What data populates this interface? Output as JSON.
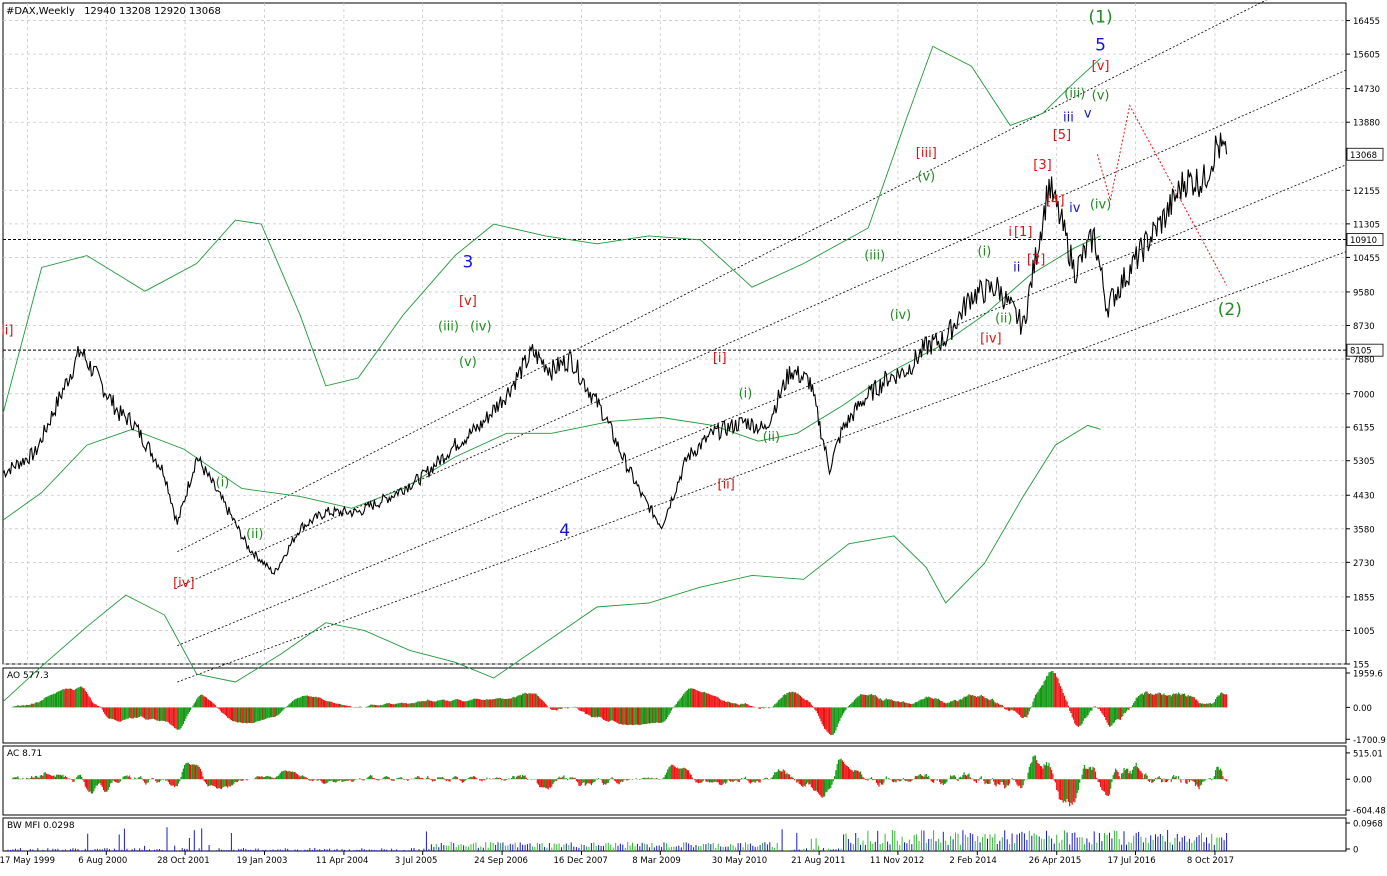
{
  "header": {
    "symbol": "#DAX,Weekly",
    "ohlc": "12940 13208 12920 13068"
  },
  "colors": {
    "price": "#000000",
    "grid": "#c8c8c8",
    "channel": "#000000",
    "envelope": "#1f9a3a",
    "wave_green": "#1e8c1e",
    "wave_red": "#dd1111",
    "wave_blue": "#1515d0",
    "ao_up": "#119911",
    "ao_down": "#ee1111",
    "mfi": "#1a1acc",
    "mfi_green": "#33bb33",
    "projection": "#ee1111"
  },
  "chart_data": [
    {
      "type": "line",
      "name": "price",
      "title": "#DAX,Weekly",
      "ylim": [
        155,
        16900
      ],
      "y_ticks": [
        "16455",
        "15605",
        "14730",
        "13880",
        "12155",
        "11305",
        "10455",
        "9580",
        "8730",
        "7880",
        "7000",
        "6155",
        "5305",
        "4430",
        "3580",
        "2730",
        "1855",
        "1005",
        "155"
      ],
      "price_tags": [
        "13068",
        "10910",
        "8105"
      ],
      "x_ticks": [
        "17 May 1999",
        "6 Aug 2000",
        "28 Oct 2001",
        "19 Jan 2003",
        "11 Apr 2004",
        "3 Jul 2005",
        "24 Sep 2006",
        "16 Dec 2007",
        "8 Mar 2009",
        "30 May 2010",
        "21 Aug 2011",
        "11 Nov 2012",
        "2 Feb 2014",
        "26 Apr 2015",
        "17 Jul 2016",
        "8 Oct 2017"
      ],
      "x": [
        1999.0,
        1999.5,
        2000.2,
        2000.5,
        2000.8,
        2001.0,
        2001.5,
        2001.7,
        2002.0,
        2002.5,
        2002.8,
        2003.2,
        2003.6,
        2004.0,
        2004.5,
        2005.0,
        2005.5,
        2006.0,
        2006.4,
        2006.8,
        2007.2,
        2007.5,
        2007.8,
        2008.0,
        2008.3,
        2008.6,
        2008.9,
        2009.2,
        2009.6,
        2010.0,
        2010.5,
        2010.8,
        2011.2,
        2011.5,
        2011.8,
        2012.0,
        2012.3,
        2012.7,
        2013.0,
        2013.3,
        2013.6,
        2014.0,
        2014.4,
        2014.8,
        2015.2,
        2015.4,
        2015.6,
        2015.9,
        2016.1,
        2016.4,
        2016.7,
        2017.0,
        2017.3,
        2017.6,
        2017.8,
        2017.95
      ],
      "y": [
        5000,
        5500,
        8100,
        7300,
        6500,
        6300,
        5000,
        3700,
        5400,
        4000,
        3100,
        2450,
        3600,
        4000,
        4000,
        4400,
        4900,
        5700,
        6200,
        7000,
        8050,
        7600,
        7900,
        7300,
        6500,
        5400,
        4400,
        3650,
        5400,
        6000,
        6300,
        6100,
        7600,
        7300,
        5100,
        6100,
        6800,
        7400,
        7600,
        8200,
        8400,
        9500,
        9700,
        8700,
        12300,
        11300,
        10100,
        11000,
        9200,
        10000,
        10800,
        11500,
        12400,
        12400,
        13300,
        13068
      ],
      "overlays": {
        "channel_lines": 4,
        "envelopes": 3
      },
      "wave_labels": [
        {
          "text": "[iii]",
          "color": "red",
          "x": 1999.0,
          "y": 8500
        },
        {
          "text": "(i)",
          "color": "green",
          "x": 2002.4,
          "y": 4650
        },
        {
          "text": "(ii)",
          "color": "green",
          "x": 2002.9,
          "y": 3350
        },
        {
          "text": "[iv]",
          "color": "red",
          "x": 2001.8,
          "y": 2100
        },
        {
          "text": "3",
          "color": "blue",
          "x": 2006.2,
          "y": 10200
        },
        {
          "text": "[v]",
          "color": "red",
          "x": 2006.2,
          "y": 9250
        },
        {
          "text": "(iii)",
          "color": "green",
          "x": 2005.9,
          "y": 8600
        },
        {
          "text": "(iv)",
          "color": "green",
          "x": 2006.4,
          "y": 8600
        },
        {
          "text": "(v)",
          "color": "green",
          "x": 2006.2,
          "y": 7700
        },
        {
          "text": "4",
          "color": "blue",
          "x": 2007.7,
          "y": 3400
        },
        {
          "text": "[i]",
          "color": "red",
          "x": 2010.1,
          "y": 7800
        },
        {
          "text": "(i)",
          "color": "green",
          "x": 2010.5,
          "y": 6900
        },
        {
          "text": "(ii)",
          "color": "green",
          "x": 2010.9,
          "y": 5800
        },
        {
          "text": "[ii]",
          "color": "red",
          "x": 2010.2,
          "y": 4600
        },
        {
          "text": "(iii)",
          "color": "green",
          "x": 2012.5,
          "y": 10400
        },
        {
          "text": "(iv)",
          "color": "green",
          "x": 2012.9,
          "y": 8900
        },
        {
          "text": "[iii]",
          "color": "red",
          "x": 2013.3,
          "y": 13000
        },
        {
          "text": "(v)",
          "color": "green",
          "x": 2013.3,
          "y": 12400
        },
        {
          "text": "(i)",
          "color": "green",
          "x": 2014.2,
          "y": 10500
        },
        {
          "text": "(ii)",
          "color": "green",
          "x": 2014.5,
          "y": 8800
        },
        {
          "text": "[iv]",
          "color": "red",
          "x": 2014.3,
          "y": 8300
        },
        {
          "text": "i",
          "color": "red",
          "x": 2014.6,
          "y": 11000
        },
        {
          "text": "[1]",
          "color": "red",
          "x": 2014.8,
          "y": 11000
        },
        {
          "text": "ii",
          "color": "blue",
          "x": 2014.7,
          "y": 10100
        },
        {
          "text": "[2]",
          "color": "red",
          "x": 2015.0,
          "y": 10300
        },
        {
          "text": "[3]",
          "color": "red",
          "x": 2015.1,
          "y": 12700
        },
        {
          "text": "[4]",
          "color": "red",
          "x": 2015.3,
          "y": 11800
        },
        {
          "text": "[5]",
          "color": "red",
          "x": 2015.4,
          "y": 13450
        },
        {
          "text": "iii",
          "color": "blue",
          "x": 2015.5,
          "y": 13900
        },
        {
          "text": "v",
          "color": "blue",
          "x": 2015.8,
          "y": 14000
        },
        {
          "text": "iv",
          "color": "blue",
          "x": 2015.6,
          "y": 11600
        },
        {
          "text": "(iv)",
          "color": "green",
          "x": 2016.0,
          "y": 11700
        },
        {
          "text": "(iii)",
          "color": "green",
          "x": 2015.6,
          "y": 14500
        },
        {
          "text": "[v]",
          "color": "red",
          "x": 2016.0,
          "y": 15200
        },
        {
          "text": "(v)",
          "color": "green",
          "x": 2016.0,
          "y": 14450
        },
        {
          "text": "5",
          "color": "blue",
          "x": 2016.0,
          "y": 15700
        },
        {
          "text": "(1)",
          "color": "green",
          "x": 2016.0,
          "y": 16400
        },
        {
          "text": "(2)",
          "color": "green",
          "x": 2018.0,
          "y": 9000
        }
      ]
    },
    {
      "type": "bar",
      "name": "AO",
      "title": "AO 577.3",
      "y_ticks": [
        "1959.6",
        "0.00",
        "-1700.9"
      ],
      "ylim": [
        -1900,
        2100
      ]
    },
    {
      "type": "bar",
      "name": "AC",
      "title": "AC 8.71",
      "y_ticks": [
        "515.01",
        "0.00",
        "-604.48"
      ],
      "ylim": [
        -700,
        650
      ]
    },
    {
      "type": "bar",
      "name": "BW MFI",
      "title": "BW MFI 0.0298",
      "y_ticks": [
        "0.0968",
        "0"
      ],
      "ylim": [
        0,
        0.11
      ]
    }
  ]
}
